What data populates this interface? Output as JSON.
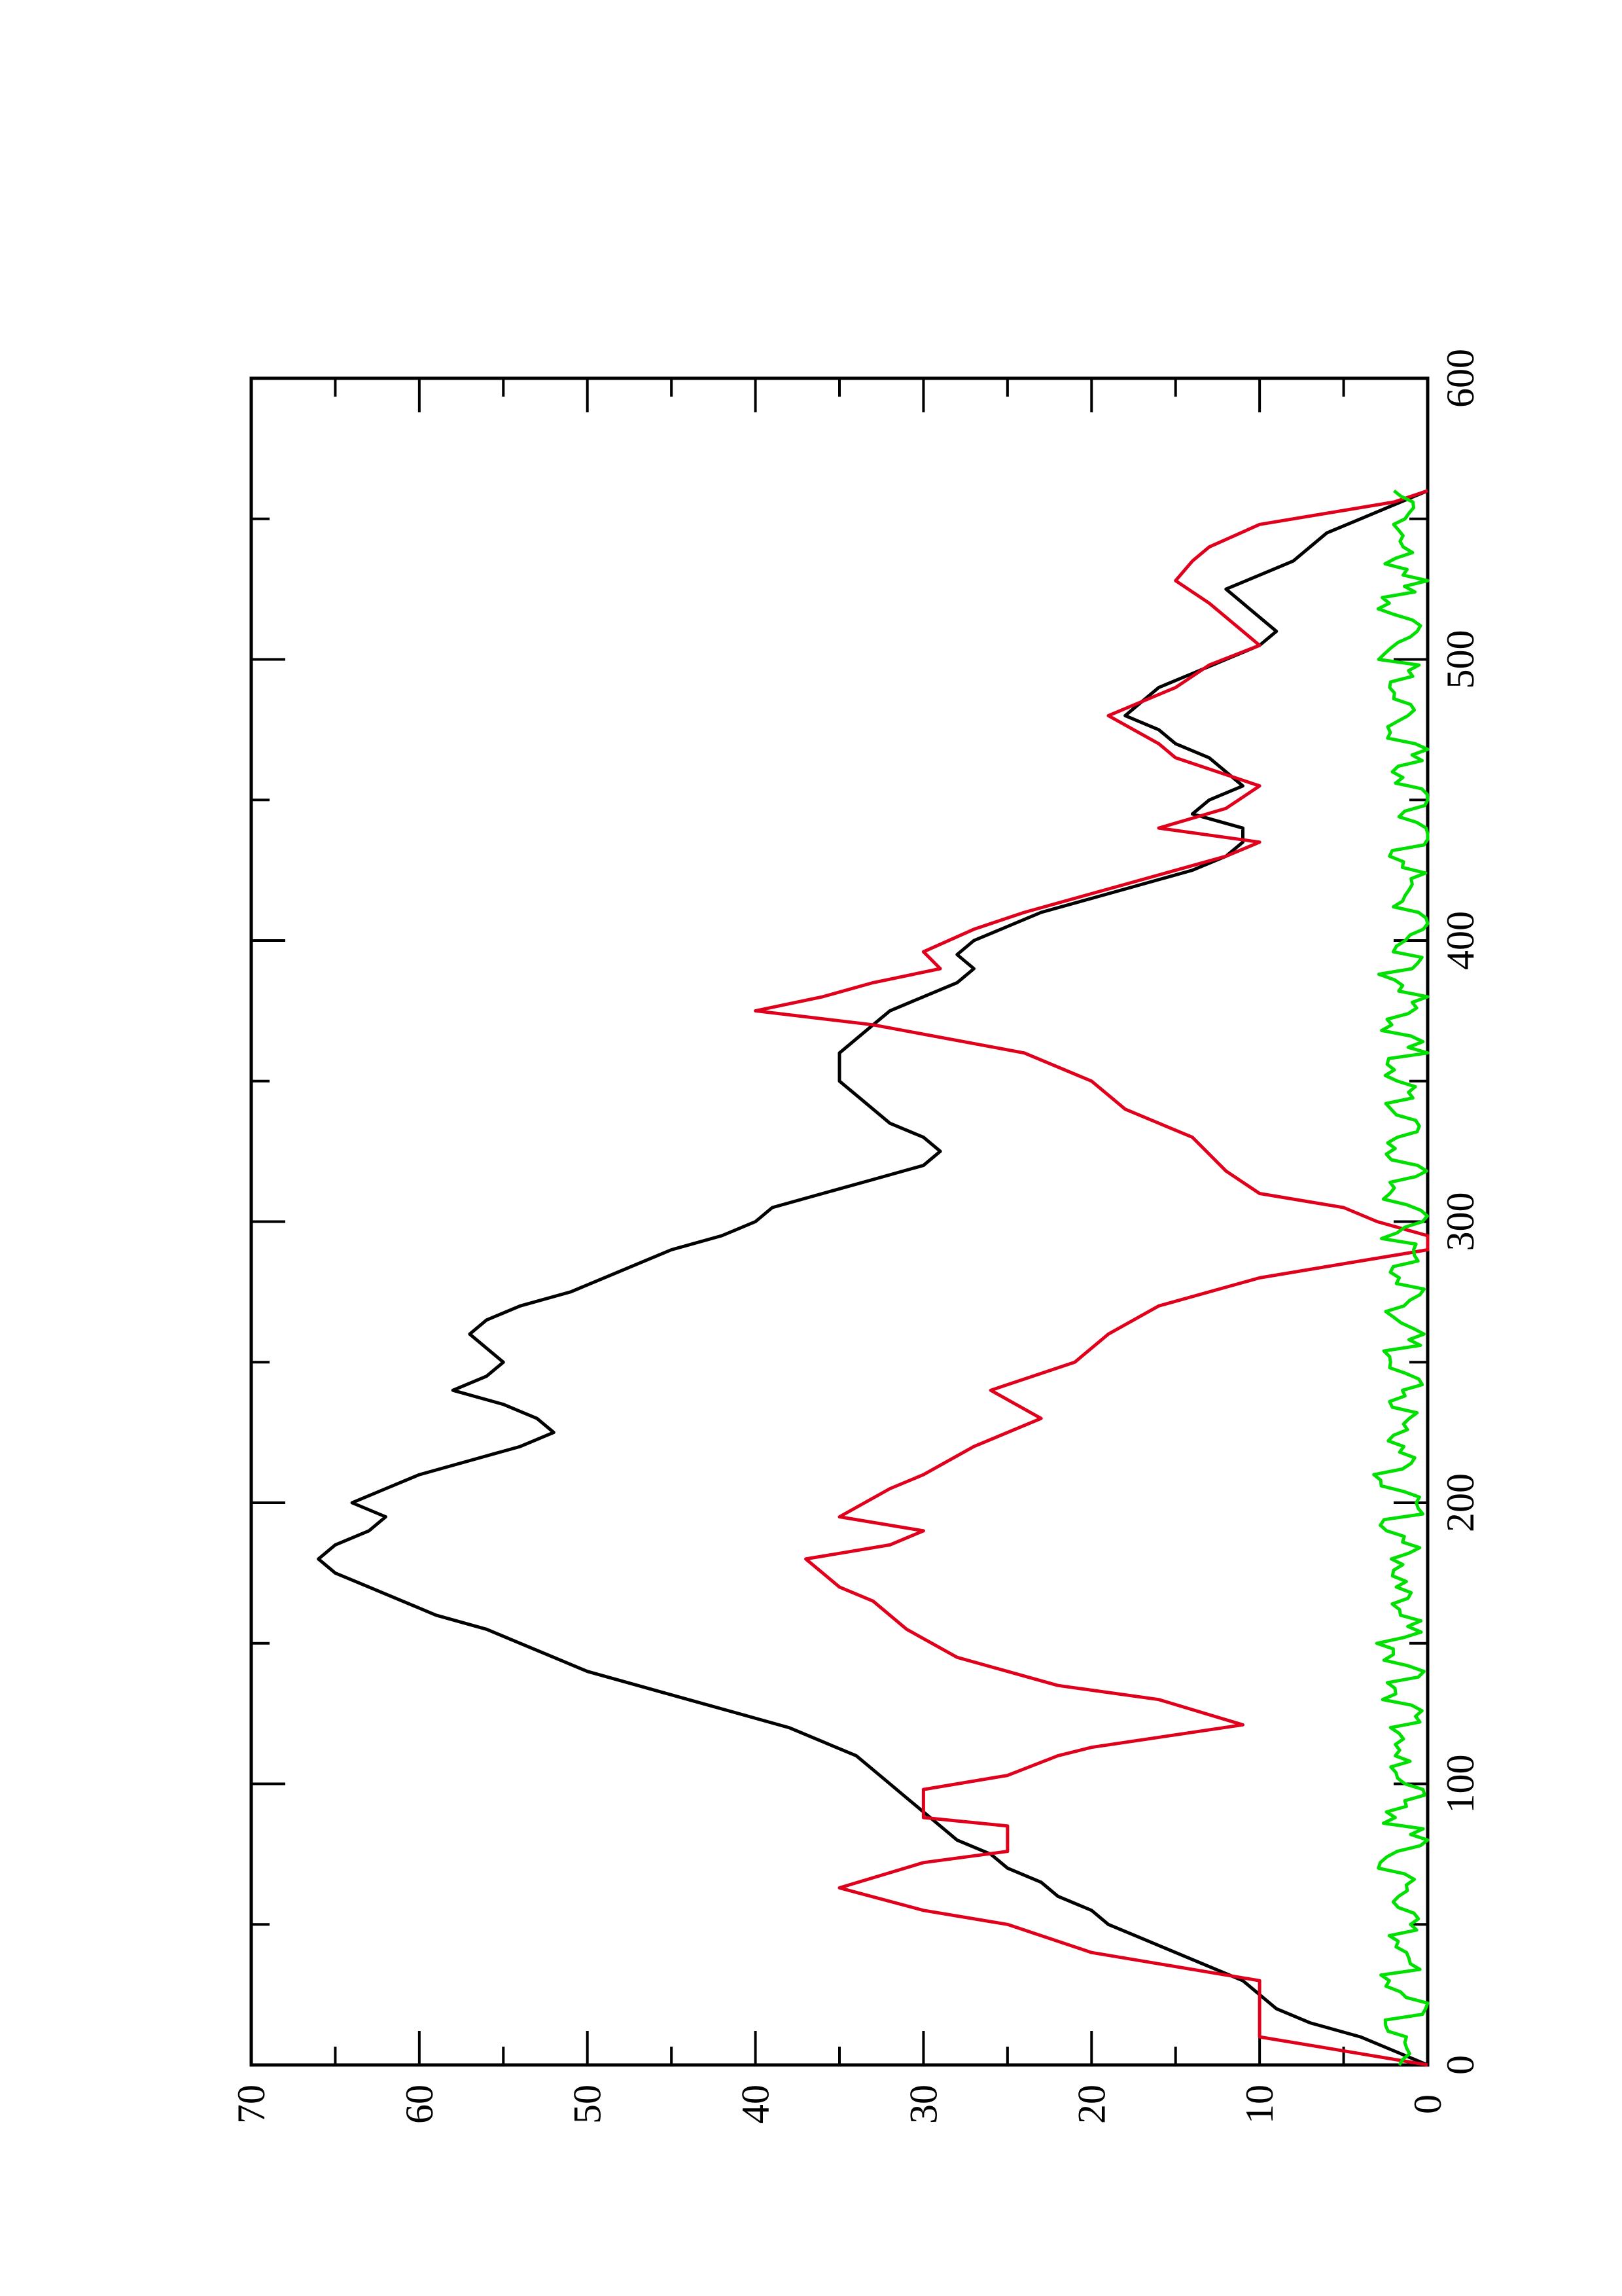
{
  "colors": {
    "axes": "#000000",
    "black_series": "#000000",
    "red_series": "#e0001b",
    "green_series": "#00e000"
  },
  "chart_data": {
    "type": "line",
    "orientation": "rotated-90-ccw",
    "title": "",
    "xlabel": "",
    "ylabel": "",
    "xlim": [
      0,
      600
    ],
    "ylim": [
      0,
      70
    ],
    "x_ticks": [
      0,
      100,
      200,
      300,
      400,
      500,
      600
    ],
    "y_ticks": [
      0,
      10,
      20,
      30,
      40,
      50,
      60,
      70
    ],
    "x_tick_labels": [
      "0",
      "100",
      "200",
      "300",
      "400",
      "500",
      "600"
    ],
    "y_tick_labels": [
      "0",
      "10",
      "20",
      "30",
      "40",
      "50",
      "60",
      "70"
    ],
    "x_minor_ticks": [
      50,
      150,
      250,
      350,
      450,
      550
    ],
    "y_minor_ticks": [
      5,
      15,
      25,
      35,
      45,
      55,
      65
    ],
    "grid": false,
    "legend": "none",
    "series": [
      {
        "color": "black",
        "style": "line",
        "points": [
          [
            0,
            0
          ],
          [
            5,
            2
          ],
          [
            10,
            4
          ],
          [
            15,
            7
          ],
          [
            20,
            9
          ],
          [
            25,
            10
          ],
          [
            30,
            11
          ],
          [
            35,
            13
          ],
          [
            40,
            15
          ],
          [
            45,
            17
          ],
          [
            50,
            19
          ],
          [
            55,
            20
          ],
          [
            60,
            22
          ],
          [
            65,
            23
          ],
          [
            70,
            25
          ],
          [
            75,
            26
          ],
          [
            80,
            28
          ],
          [
            85,
            29
          ],
          [
            90,
            30
          ],
          [
            95,
            31
          ],
          [
            100,
            32
          ],
          [
            105,
            33
          ],
          [
            110,
            34
          ],
          [
            115,
            36
          ],
          [
            120,
            38
          ],
          [
            125,
            41
          ],
          [
            130,
            44
          ],
          [
            135,
            47
          ],
          [
            140,
            50
          ],
          [
            145,
            52
          ],
          [
            150,
            54
          ],
          [
            155,
            56
          ],
          [
            160,
            59
          ],
          [
            165,
            61
          ],
          [
            170,
            63
          ],
          [
            175,
            65
          ],
          [
            180,
            66
          ],
          [
            185,
            65
          ],
          [
            190,
            63
          ],
          [
            195,
            62
          ],
          [
            200,
            64
          ],
          [
            205,
            62
          ],
          [
            210,
            60
          ],
          [
            215,
            57
          ],
          [
            220,
            54
          ],
          [
            225,
            52
          ],
          [
            230,
            53
          ],
          [
            235,
            55
          ],
          [
            240,
            58
          ],
          [
            245,
            56
          ],
          [
            250,
            55
          ],
          [
            255,
            56
          ],
          [
            260,
            57
          ],
          [
            265,
            56
          ],
          [
            270,
            54
          ],
          [
            275,
            51
          ],
          [
            280,
            49
          ],
          [
            285,
            47
          ],
          [
            290,
            45
          ],
          [
            295,
            42
          ],
          [
            300,
            40
          ],
          [
            305,
            39
          ],
          [
            310,
            36
          ],
          [
            315,
            33
          ],
          [
            320,
            30
          ],
          [
            325,
            29
          ],
          [
            330,
            30
          ],
          [
            335,
            32
          ],
          [
            340,
            33
          ],
          [
            345,
            34
          ],
          [
            350,
            35
          ],
          [
            355,
            35
          ],
          [
            360,
            35
          ],
          [
            365,
            34
          ],
          [
            370,
            33
          ],
          [
            375,
            32
          ],
          [
            380,
            30
          ],
          [
            385,
            28
          ],
          [
            390,
            27
          ],
          [
            395,
            28
          ],
          [
            400,
            27
          ],
          [
            405,
            25
          ],
          [
            410,
            23
          ],
          [
            415,
            20
          ],
          [
            420,
            17
          ],
          [
            425,
            14
          ],
          [
            430,
            12
          ],
          [
            435,
            11
          ],
          [
            440,
            11
          ],
          [
            445,
            14
          ],
          [
            450,
            13
          ],
          [
            455,
            11
          ],
          [
            460,
            12
          ],
          [
            465,
            13
          ],
          [
            470,
            15
          ],
          [
            475,
            16
          ],
          [
            480,
            18
          ],
          [
            485,
            17
          ],
          [
            490,
            16
          ],
          [
            495,
            14
          ],
          [
            500,
            12
          ],
          [
            505,
            10
          ],
          [
            510,
            9
          ],
          [
            515,
            10
          ],
          [
            520,
            11
          ],
          [
            525,
            12
          ],
          [
            530,
            10
          ],
          [
            535,
            8
          ],
          [
            540,
            7
          ],
          [
            545,
            6
          ],
          [
            550,
            4
          ],
          [
            555,
            2
          ],
          [
            560,
            0
          ]
        ]
      },
      {
        "color": "red",
        "style": "step-line",
        "points": [
          [
            0,
            0
          ],
          [
            6,
            6
          ],
          [
            10,
            10
          ],
          [
            30,
            10
          ],
          [
            40,
            20
          ],
          [
            50,
            25
          ],
          [
            55,
            30
          ],
          [
            63,
            35
          ],
          [
            72,
            30
          ],
          [
            76,
            25
          ],
          [
            85,
            25
          ],
          [
            88,
            30
          ],
          [
            98,
            30
          ],
          [
            103,
            25
          ],
          [
            110,
            22
          ],
          [
            113,
            20
          ],
          [
            121,
            11
          ],
          [
            130,
            16
          ],
          [
            135,
            22
          ],
          [
            145,
            28
          ],
          [
            155,
            31
          ],
          [
            165,
            33
          ],
          [
            170,
            35
          ],
          [
            180,
            37
          ],
          [
            185,
            32
          ],
          [
            190,
            30
          ],
          [
            195,
            35
          ],
          [
            205,
            32
          ],
          [
            210,
            30
          ],
          [
            220,
            27
          ],
          [
            230,
            23
          ],
          [
            240,
            26
          ],
          [
            250,
            21
          ],
          [
            260,
            19
          ],
          [
            270,
            16
          ],
          [
            280,
            10
          ],
          [
            285,
            5
          ],
          [
            290,
            0
          ],
          [
            295,
            0
          ],
          [
            300,
            3
          ],
          [
            305,
            5
          ],
          [
            310,
            10
          ],
          [
            318,
            12
          ],
          [
            330,
            14
          ],
          [
            340,
            18
          ],
          [
            350,
            20
          ],
          [
            360,
            24
          ],
          [
            370,
            33
          ],
          [
            375,
            40
          ],
          [
            380,
            36
          ],
          [
            385,
            33
          ],
          [
            390,
            29
          ],
          [
            396,
            30
          ],
          [
            404,
            27
          ],
          [
            410,
            24
          ],
          [
            420,
            18
          ],
          [
            430,
            12
          ],
          [
            435,
            10
          ],
          [
            440,
            16
          ],
          [
            447,
            12
          ],
          [
            455,
            10
          ],
          [
            465,
            15
          ],
          [
            470,
            16
          ],
          [
            480,
            19
          ],
          [
            485,
            17
          ],
          [
            490,
            15
          ],
          [
            498,
            13
          ],
          [
            505,
            10
          ],
          [
            520,
            13
          ],
          [
            528,
            15
          ],
          [
            535,
            14
          ],
          [
            540,
            13
          ],
          [
            548,
            10
          ],
          [
            553,
            5
          ],
          [
            556,
            2
          ],
          [
            560,
            0
          ]
        ]
      },
      {
        "color": "green",
        "style": "noisy-line",
        "points": [
          [
            0,
            1
          ],
          [
            10,
            2
          ],
          [
            20,
            1
          ],
          [
            30,
            2
          ],
          [
            40,
            1
          ],
          [
            50,
            2
          ],
          [
            60,
            1
          ],
          [
            70,
            2
          ],
          [
            80,
            1
          ],
          [
            90,
            2
          ],
          [
            100,
            1
          ],
          [
            110,
            2
          ],
          [
            120,
            1
          ],
          [
            130,
            2
          ],
          [
            140,
            1
          ],
          [
            150,
            2
          ],
          [
            160,
            1
          ],
          [
            170,
            2
          ],
          [
            180,
            1
          ],
          [
            190,
            2
          ],
          [
            200,
            1
          ],
          [
            210,
            2
          ],
          [
            220,
            1
          ],
          [
            230,
            2
          ],
          [
            240,
            1
          ],
          [
            250,
            2
          ],
          [
            260,
            1
          ],
          [
            270,
            2
          ],
          [
            280,
            1
          ],
          [
            290,
            2
          ],
          [
            300,
            1
          ],
          [
            310,
            2
          ],
          [
            320,
            1
          ],
          [
            330,
            2
          ],
          [
            340,
            1
          ],
          [
            350,
            2
          ],
          [
            360,
            1
          ],
          [
            370,
            2
          ],
          [
            380,
            1
          ],
          [
            390,
            2
          ],
          [
            400,
            1
          ],
          [
            410,
            1
          ],
          [
            420,
            1
          ],
          [
            430,
            1
          ],
          [
            440,
            0.5
          ],
          [
            450,
            1
          ],
          [
            460,
            1
          ],
          [
            470,
            1
          ],
          [
            480,
            2
          ],
          [
            490,
            1
          ],
          [
            500,
            2
          ],
          [
            510,
            1
          ],
          [
            520,
            2
          ],
          [
            530,
            1
          ],
          [
            540,
            2
          ],
          [
            550,
            1
          ],
          [
            560,
            2
          ]
        ]
      }
    ]
  }
}
